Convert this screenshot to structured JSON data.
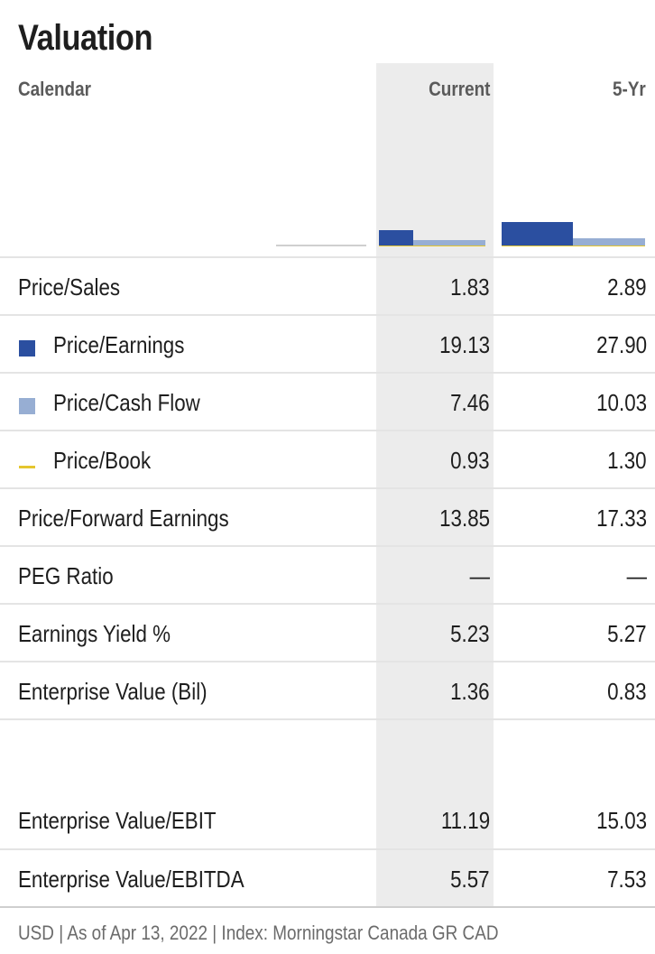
{
  "title": "Valuation",
  "headers": {
    "calendar": "Calendar",
    "current": "Current",
    "five_yr": "5-Yr"
  },
  "colors": {
    "pe": "#2b4fa0",
    "pcf": "#97aed3",
    "pb": "#e5c62f"
  },
  "chart_data": {
    "type": "bar",
    "categories": [
      "Current",
      "5-Yr"
    ],
    "series": [
      {
        "name": "Price/Earnings",
        "values": [
          19.13,
          27.9
        ]
      },
      {
        "name": "Price/Cash Flow",
        "values": [
          7.46,
          10.03
        ]
      },
      {
        "name": "Price/Book",
        "values": [
          0.93,
          1.3
        ]
      }
    ]
  },
  "rows": [
    {
      "label": "Price/Sales",
      "current": "1.83",
      "five_yr": "2.89"
    },
    {
      "label": "Price/Earnings",
      "current": "19.13",
      "five_yr": "27.90"
    },
    {
      "label": "Price/Cash Flow",
      "current": "7.46",
      "five_yr": "10.03"
    },
    {
      "label": "Price/Book",
      "current": "0.93",
      "five_yr": "1.30"
    },
    {
      "label": "Price/Forward Earnings",
      "current": "13.85",
      "five_yr": "17.33"
    },
    {
      "label": "PEG Ratio",
      "current": "—",
      "five_yr": "—"
    },
    {
      "label": "Earnings Yield %",
      "current": "5.23",
      "five_yr": "5.27"
    },
    {
      "label": "Enterprise Value (Bil)",
      "current": "1.36",
      "five_yr": "0.83"
    },
    {
      "label": "Enterprise Value/EBIT",
      "current": "11.19",
      "five_yr": "15.03"
    },
    {
      "label": "Enterprise Value/EBITDA",
      "current": "5.57",
      "five_yr": "7.53"
    }
  ],
  "footer": "USD | As of Apr 13, 2022 | Index: Morningstar Canada GR CAD"
}
